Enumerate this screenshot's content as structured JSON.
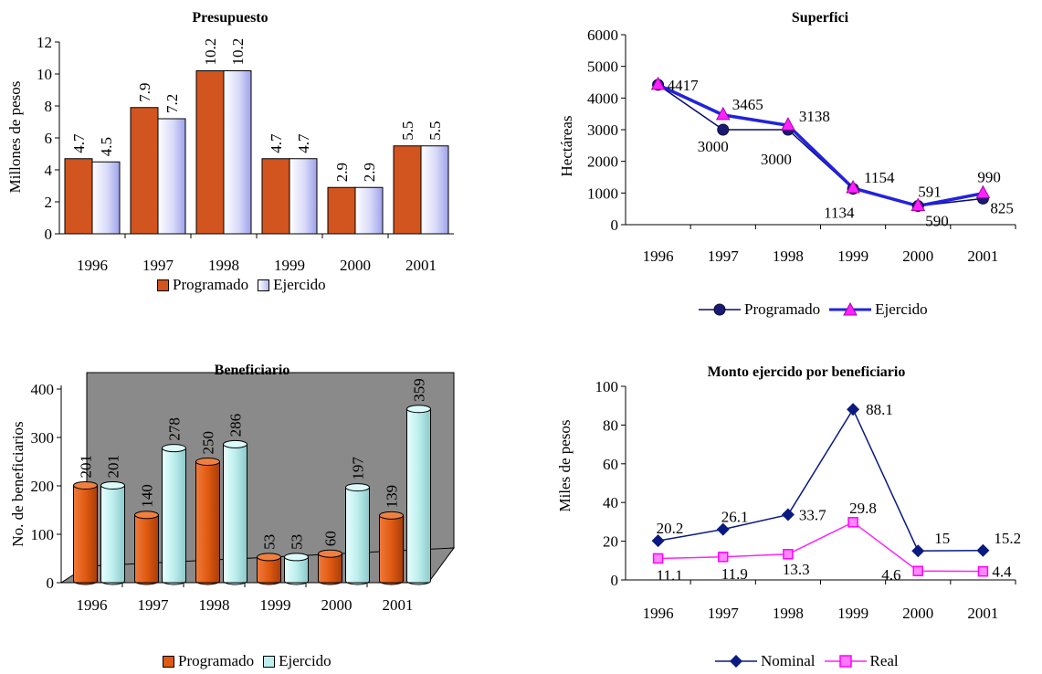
{
  "chart_data": [
    {
      "id": "presupuesto",
      "type": "bar",
      "title": "Presupuesto",
      "ylabel": "Millones de pesos",
      "xlabel": "",
      "categories": [
        "1996",
        "1997",
        "1998",
        "1999",
        "2000",
        "2001"
      ],
      "series": [
        {
          "name": "Programado",
          "values": [
            4.7,
            7.9,
            10.2,
            4.7,
            2.9,
            5.5
          ],
          "labels": [
            "4.7",
            "7.9",
            "10.2",
            "4.7",
            "2.9",
            "5.5"
          ],
          "color": "#d2541e"
        },
        {
          "name": "Ejercido",
          "values": [
            4.5,
            7.2,
            10.2,
            4.7,
            2.9,
            5.5
          ],
          "labels": [
            "4.5",
            "7.2",
            "10.2",
            "4.7",
            "2.9",
            "5.5"
          ],
          "color": "#c9cbf2"
        }
      ],
      "ylim": [
        0,
        12
      ],
      "yticks": [
        "0",
        "2",
        "4",
        "6",
        "8",
        "10",
        "12"
      ],
      "legend": "bottom",
      "grid": false
    },
    {
      "id": "superficie",
      "type": "line",
      "title": "Superfici",
      "ylabel": "Hectáreas",
      "xlabel": "",
      "categories": [
        "1996",
        "1997",
        "1998",
        "1999",
        "2000",
        "2001"
      ],
      "series": [
        {
          "name": "Programado",
          "values": [
            4417,
            3000,
            3000,
            1134,
            590,
            825
          ],
          "labels": [
            "4417",
            "3000",
            "3000",
            "1134",
            "590",
            "825"
          ],
          "color": "#0a0a70",
          "marker": "circle"
        },
        {
          "name": "Ejercido",
          "values": [
            4417,
            3465,
            3138,
            1154,
            591,
            990
          ],
          "labels": [
            "4417",
            "3465",
            "3138",
            "1154",
            "591",
            "990"
          ],
          "color": "#2222dd",
          "marker": "triangle",
          "marker_color": "#ff22ff"
        }
      ],
      "ylim": [
        0,
        6000
      ],
      "yticks": [
        "0",
        "1000",
        "2000",
        "3000",
        "4000",
        "5000",
        "6000"
      ],
      "legend": "bottom",
      "grid": false
    },
    {
      "id": "beneficiarios",
      "type": "bar",
      "title": "Beneficiario",
      "ylabel": "No. de beneficiarios",
      "xlabel": "",
      "categories": [
        "1996",
        "1997",
        "1998",
        "1999",
        "2000",
        "2001"
      ],
      "series": [
        {
          "name": "Programado",
          "values": [
            201,
            140,
            250,
            53,
            60,
            139
          ],
          "labels": [
            "201",
            "140",
            "250",
            "53",
            "60",
            "139"
          ],
          "color": "#e05a12"
        },
        {
          "name": "Ejercido",
          "values": [
            201,
            278,
            286,
            53,
            197,
            359
          ],
          "labels": [
            "201",
            "278",
            "286",
            "53",
            "197",
            "359"
          ],
          "color": "#bdeeee"
        }
      ],
      "ylim": [
        0,
        400
      ],
      "yticks": [
        "0",
        "100",
        "200",
        "300",
        "400"
      ],
      "legend": "bottom",
      "grid": false,
      "background": "#8a8a8a",
      "style": "3d-cylinder"
    },
    {
      "id": "monto",
      "type": "line",
      "title": "Monto ejercido por beneficiario",
      "ylabel": "Miles de pesos",
      "xlabel": "",
      "categories": [
        "1996",
        "1997",
        "1998",
        "1999",
        "2000",
        "2001"
      ],
      "series": [
        {
          "name": "Nominal",
          "values": [
            20.2,
            26.1,
            33.7,
            88.1,
            15,
            15.2
          ],
          "labels": [
            "20.2",
            "26.1",
            "33.7",
            "88.1",
            "15",
            "15.2"
          ],
          "color": "#0a1a80",
          "marker": "diamond"
        },
        {
          "name": "Real",
          "values": [
            11.1,
            11.9,
            13.3,
            29.8,
            4.6,
            4.4
          ],
          "labels": [
            "11.1",
            "11.9",
            "13.3",
            "29.8",
            "4.6",
            "4.4"
          ],
          "color": "#ff22ff",
          "marker": "square"
        }
      ],
      "ylim": [
        0,
        100
      ],
      "yticks": [
        "0",
        "20",
        "40",
        "60",
        "80",
        "100"
      ],
      "legend": "bottom",
      "grid": false
    }
  ]
}
